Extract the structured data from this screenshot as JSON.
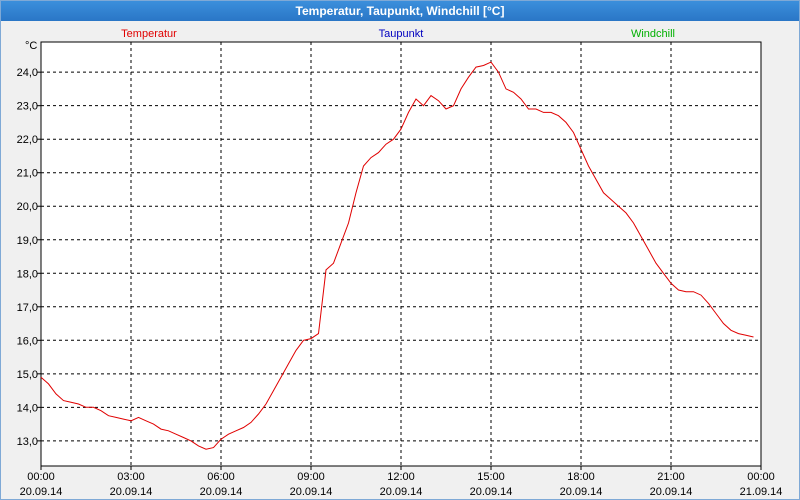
{
  "window": {
    "title": "Temperatur, Taupunkt, Windchill [°C]"
  },
  "chart_data": {
    "type": "line",
    "title": "Temperatur, Taupunkt, Windchill [°C]",
    "yunit": "°C",
    "ylim": [
      12.25,
      24.9
    ],
    "xlim": [
      "20.09.14 00:00",
      "21.09.14 00:00"
    ],
    "y_ticks": [
      "13,0",
      "14,0",
      "15,0",
      "16,0",
      "17,0",
      "18,0",
      "19,0",
      "20,0",
      "21,0",
      "22,0",
      "23,0",
      "24,0"
    ],
    "x_ticks": [
      {
        "time": "00:00",
        "date": "20.09.14"
      },
      {
        "time": "03:00",
        "date": "20.09.14"
      },
      {
        "time": "06:00",
        "date": "20.09.14"
      },
      {
        "time": "09:00",
        "date": "20.09.14"
      },
      {
        "time": "12:00",
        "date": "20.09.14"
      },
      {
        "time": "15:00",
        "date": "20.09.14"
      },
      {
        "time": "18:00",
        "date": "20.09.14"
      },
      {
        "time": "21:00",
        "date": "20.09.14"
      },
      {
        "time": "00:00",
        "date": "21.09.14"
      }
    ],
    "grid": true,
    "legend": [
      {
        "name": "Temperatur",
        "color": "#e00000"
      },
      {
        "name": "Taupunkt",
        "color": "#0000c0"
      },
      {
        "name": "Windchill",
        "color": "#00b000"
      }
    ],
    "series": [
      {
        "name": "Temperatur",
        "color": "#e00000",
        "x": [
          "00:00",
          "00:15",
          "00:30",
          "00:45",
          "01:00",
          "01:15",
          "01:30",
          "01:45",
          "02:00",
          "02:15",
          "02:30",
          "02:45",
          "03:00",
          "03:15",
          "03:30",
          "03:45",
          "04:00",
          "04:15",
          "04:30",
          "04:45",
          "05:00",
          "05:15",
          "05:30",
          "05:45",
          "06:00",
          "06:15",
          "06:30",
          "06:45",
          "07:00",
          "07:15",
          "07:30",
          "07:45",
          "08:00",
          "08:15",
          "08:30",
          "08:45",
          "09:00",
          "09:15",
          "09:30",
          "09:45",
          "10:00",
          "10:15",
          "10:30",
          "10:45",
          "11:00",
          "11:15",
          "11:30",
          "11:45",
          "12:00",
          "12:15",
          "12:30",
          "12:45",
          "13:00",
          "13:15",
          "13:30",
          "13:45",
          "14:00",
          "14:15",
          "14:30",
          "14:45",
          "15:00",
          "15:15",
          "15:30",
          "15:45",
          "16:00",
          "16:15",
          "16:30",
          "16:45",
          "17:00",
          "17:15",
          "17:30",
          "17:45",
          "18:00",
          "18:15",
          "18:30",
          "18:45",
          "19:00",
          "19:15",
          "19:30",
          "19:45",
          "20:00",
          "20:15",
          "20:30",
          "20:45",
          "21:00",
          "21:15",
          "21:30",
          "21:45",
          "22:00",
          "22:15",
          "22:30",
          "22:45",
          "23:00",
          "23:15",
          "23:30",
          "23:45"
        ],
        "values": [
          14.9,
          14.7,
          14.4,
          14.2,
          14.15,
          14.1,
          14.0,
          14.0,
          13.9,
          13.75,
          13.7,
          13.65,
          13.6,
          13.7,
          13.6,
          13.5,
          13.35,
          13.3,
          13.2,
          13.1,
          13.0,
          12.85,
          12.75,
          12.8,
          13.05,
          13.2,
          13.3,
          13.4,
          13.55,
          13.8,
          14.1,
          14.5,
          14.9,
          15.3,
          15.7,
          16.0,
          16.05,
          16.2,
          18.1,
          18.3,
          18.9,
          19.5,
          20.4,
          21.2,
          21.45,
          21.6,
          21.85,
          22.0,
          22.3,
          22.8,
          23.2,
          23.0,
          23.3,
          23.15,
          22.9,
          23.0,
          23.5,
          23.85,
          24.15,
          24.2,
          24.3,
          24.0,
          23.5,
          23.4,
          23.2,
          22.9,
          22.9,
          22.8,
          22.8,
          22.7,
          22.5,
          22.2,
          21.7,
          21.2,
          20.8,
          20.4,
          20.2,
          20.0,
          19.8,
          19.5,
          19.1,
          18.7,
          18.3,
          18.0,
          17.7,
          17.5,
          17.45,
          17.45,
          17.35,
          17.1,
          16.8,
          16.5,
          16.3,
          16.2,
          16.15,
          16.1
        ]
      }
    ]
  }
}
